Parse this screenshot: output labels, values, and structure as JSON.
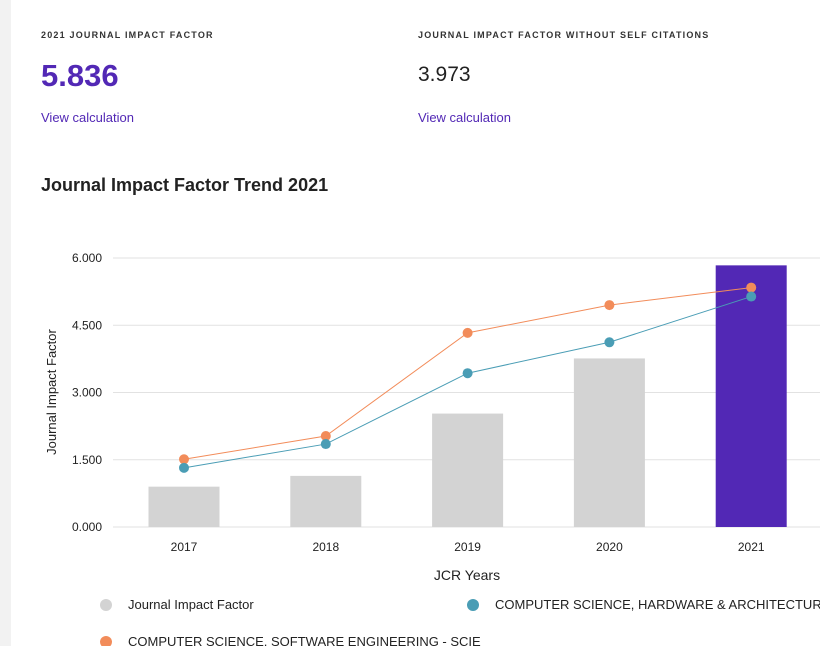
{
  "metrics": {
    "jif": {
      "label": "2021 JOURNAL IMPACT FACTOR",
      "value": "5.836",
      "link": "View calculation"
    },
    "jif_no_self": {
      "label": "JOURNAL IMPACT FACTOR WITHOUT SELF CITATIONS",
      "value": "3.973",
      "link": "View calculation"
    }
  },
  "colors": {
    "accent": "#5228b5",
    "bar_default": "#d3d3d3",
    "bar_current": "#5228b5",
    "series_hardware": "#4a9db5",
    "series_software": "#f28c5a",
    "grid": "#e2e2e2"
  },
  "chart_data": {
    "type": "bar",
    "title": "Journal Impact Factor Trend 2021",
    "xlabel": "JCR Years",
    "ylabel": "Journal Impact Factor",
    "categories": [
      "2017",
      "2018",
      "2019",
      "2020",
      "2021"
    ],
    "ylim": [
      0,
      6
    ],
    "yticks": [
      "0.000",
      "1.500",
      "3.000",
      "4.500",
      "6.000"
    ],
    "grid": true,
    "legend_position": "bottom",
    "series": [
      {
        "name": "Journal Impact Factor",
        "kind": "bar",
        "values": [
          0.9,
          1.14,
          2.53,
          3.76,
          5.836
        ]
      },
      {
        "name": "COMPUTER SCIENCE, HARDWARE & ARCHITECTURE - SC",
        "kind": "line",
        "values": [
          1.32,
          1.85,
          3.43,
          4.12,
          5.14
        ]
      },
      {
        "name": "COMPUTER SCIENCE, SOFTWARE ENGINEERING - SCIE",
        "kind": "line",
        "values": [
          1.51,
          2.03,
          4.33,
          4.95,
          5.34
        ]
      }
    ]
  }
}
